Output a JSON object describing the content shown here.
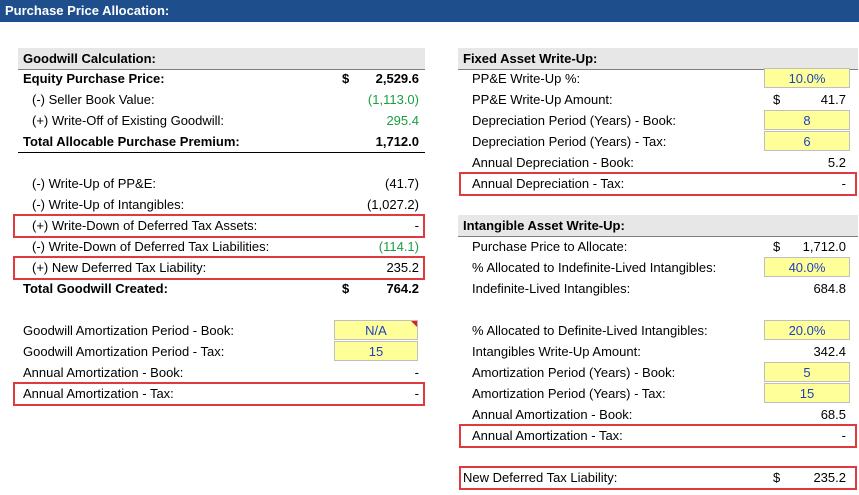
{
  "title": "Purchase Price Allocation:",
  "left": {
    "title": "Goodwill Calculation:",
    "rows": [
      {
        "label": "Equity Purchase Price:",
        "currency": "$",
        "value": "2,529.6"
      },
      {
        "label": "(-) Seller Book Value:",
        "value": "(1,113.0)"
      },
      {
        "label": "(+) Write-Off of Existing Goodwill:",
        "value": "295.4"
      },
      {
        "label": "Total Allocable Purchase Premium:",
        "value": "1,712.0"
      },
      {
        "label": "(-) Write-Up of PP&E:",
        "value": "(41.7)"
      },
      {
        "label": "(-) Write-Up of Intangibles:",
        "value": "(1,027.2)"
      },
      {
        "label": "(+) Write-Down of Deferred Tax Assets:",
        "value": "-"
      },
      {
        "label": "(-) Write-Down of Deferred Tax Liabilities:",
        "value": "(114.1)"
      },
      {
        "label": "(+) New Deferred Tax Liability:",
        "value": "235.2"
      },
      {
        "label": "Total Goodwill Created:",
        "currency": "$",
        "value": "764.2"
      },
      {
        "label": "Goodwill Amortization Period - Book:",
        "value": "N/A"
      },
      {
        "label": "Goodwill Amortization Period - Tax:",
        "value": "15"
      },
      {
        "label": "Annual Amortization - Book:",
        "value": "-"
      },
      {
        "label": "Annual Amortization - Tax:",
        "value": "-"
      }
    ]
  },
  "right": {
    "fixed": {
      "title": "Fixed Asset Write-Up:",
      "rows": [
        {
          "label": "PP&E Write-Up %:",
          "value": "10.0%"
        },
        {
          "label": "PP&E Write-Up Amount:",
          "currency": "$",
          "value": "41.7"
        },
        {
          "label": "Depreciation Period (Years) - Book:",
          "value": "8"
        },
        {
          "label": "Depreciation Period (Years) - Tax:",
          "value": "6"
        },
        {
          "label": "Annual Depreciation - Book:",
          "value": "5.2"
        },
        {
          "label": "Annual Depreciation - Tax:",
          "value": "-"
        }
      ]
    },
    "intangible": {
      "title": "Intangible Asset Write-Up:",
      "rows": [
        {
          "label": "Purchase Price to Allocate:",
          "currency": "$",
          "value": "1,712.0"
        },
        {
          "label": "% Allocated to Indefinite-Lived Intangibles:",
          "value": "40.0%"
        },
        {
          "label": "Indefinite-Lived Intangibles:",
          "value": "684.8"
        },
        {
          "label": "% Allocated to Definite-Lived Intangibles:",
          "value": "20.0%"
        },
        {
          "label": "Intangibles Write-Up Amount:",
          "value": "342.4"
        },
        {
          "label": "Amortization Period (Years) - Book:",
          "value": "5"
        },
        {
          "label": "Amortization Period (Years) - Tax:",
          "value": "15"
        },
        {
          "label": "Annual Amortization - Book:",
          "value": "68.5"
        },
        {
          "label": "Annual Amortization - Tax:",
          "value": "-"
        }
      ]
    },
    "summary": {
      "label": "New Deferred Tax Liability:",
      "currency": "$",
      "value": "235.2"
    }
  }
}
